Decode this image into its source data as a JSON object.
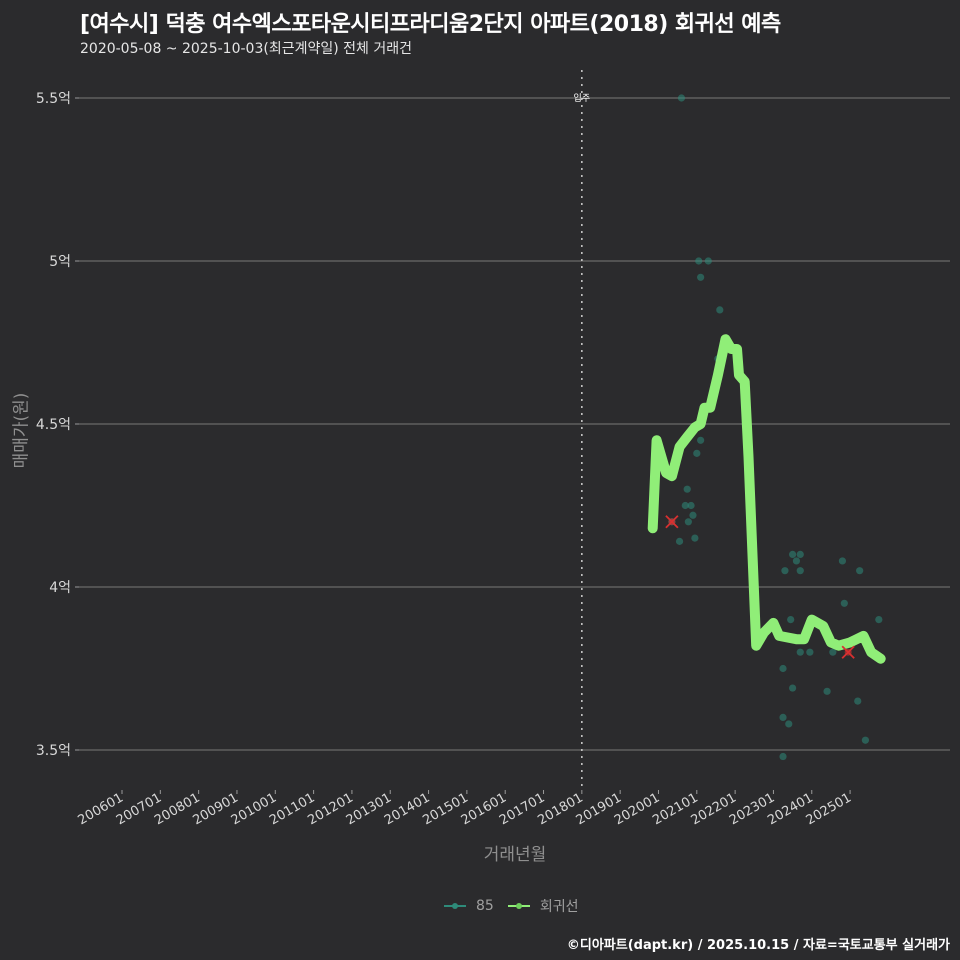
{
  "header": {
    "title": "[여수시] 덕충 여수엑스포타운시티프라디움2단지 아파트(2018) 회귀선 예측",
    "subtitle": "2020-05-08 ~ 2025-10-03(최근계약일) 전체 거래건"
  },
  "axes": {
    "ylabel": "매매가(원)",
    "xlabel": "거래년월",
    "y_ticks": [
      "5.5억",
      "5억",
      "4.5억",
      "4억",
      "3.5억"
    ],
    "x_ticks": [
      "200601",
      "200701",
      "200801",
      "200901",
      "201001",
      "201101",
      "201201",
      "201301",
      "201401",
      "201501",
      "201601",
      "201701",
      "201801",
      "201901",
      "202001",
      "202101",
      "202201",
      "202301",
      "202401",
      "202501"
    ],
    "vline_label": "입주"
  },
  "legend": [
    {
      "label": "85",
      "color": "#2e8b7a"
    },
    {
      "label": "회귀선",
      "color": "#90ee78"
    }
  ],
  "footer": "©디아파트(dapt.kr) / 2025.10.15 / 자료=국토교통부 실거래가",
  "colors": {
    "background": "#2b2b2d",
    "grid": "#6a6a6a",
    "scatter": "#2e8b7a",
    "regression": "#90ee78",
    "marker_x": "#d83030"
  },
  "chart_data": {
    "type": "scatter",
    "title": "[여수시] 덕충 여수엑스포타운시티프라디움2단지 아파트(2018) 회귀선 예측",
    "subtitle": "2020-05-08 ~ 2025-10-03(최근계약일) 전체 거래건",
    "xlabel": "거래년월",
    "ylabel": "매매가(원)",
    "ylim": [
      3.4,
      5.6
    ],
    "y_unit": "억",
    "xlim": [
      "2004-11",
      "2026-06"
    ],
    "grid": true,
    "legend_position": "bottom",
    "vertical_line": {
      "x": "2018-01",
      "label": "입주"
    },
    "series": [
      {
        "name": "85",
        "type": "scatter",
        "points": [
          {
            "x": "2020.35",
            "y": 4.2
          },
          {
            "x": "2020.55",
            "y": 4.14
          },
          {
            "x": "2020.60",
            "y": 5.5
          },
          {
            "x": "2020.70",
            "y": 4.25
          },
          {
            "x": "2020.75",
            "y": 4.3
          },
          {
            "x": "2020.78",
            "y": 4.2
          },
          {
            "x": "2020.85",
            "y": 4.25
          },
          {
            "x": "2020.90",
            "y": 4.22
          },
          {
            "x": "2020.95",
            "y": 4.15
          },
          {
            "x": "2021.00",
            "y": 4.41
          },
          {
            "x": "2021.05",
            "y": 5.0
          },
          {
            "x": "2021.10",
            "y": 4.95
          },
          {
            "x": "2021.10",
            "y": 4.45
          },
          {
            "x": "2021.30",
            "y": 5.0
          },
          {
            "x": "2021.55",
            "y": 4.7
          },
          {
            "x": "2021.60",
            "y": 4.85
          },
          {
            "x": "2023.25",
            "y": 3.48
          },
          {
            "x": "2023.25",
            "y": 3.6
          },
          {
            "x": "2023.25",
            "y": 3.75
          },
          {
            "x": "2023.30",
            "y": 4.05
          },
          {
            "x": "2023.40",
            "y": 3.58
          },
          {
            "x": "2023.45",
            "y": 3.9
          },
          {
            "x": "2023.50",
            "y": 3.69
          },
          {
            "x": "2023.50",
            "y": 4.1
          },
          {
            "x": "2023.60",
            "y": 4.08
          },
          {
            "x": "2023.70",
            "y": 4.1
          },
          {
            "x": "2023.70",
            "y": 4.05
          },
          {
            "x": "2023.70",
            "y": 3.8
          },
          {
            "x": "2023.95",
            "y": 3.8
          },
          {
            "x": "2024.40",
            "y": 3.68
          },
          {
            "x": "2024.55",
            "y": 3.8
          },
          {
            "x": "2024.80",
            "y": 4.08
          },
          {
            "x": "2024.85",
            "y": 3.95
          },
          {
            "x": "2025.20",
            "y": 3.65
          },
          {
            "x": "2025.25",
            "y": 4.05
          },
          {
            "x": "2025.40",
            "y": 3.53
          },
          {
            "x": "2025.75",
            "y": 3.9
          }
        ]
      },
      {
        "name": "회귀선",
        "type": "line",
        "points": [
          {
            "x": "2019.85",
            "y": 4.18
          },
          {
            "x": "2019.95",
            "y": 4.45
          },
          {
            "x": "2020.20",
            "y": 4.35
          },
          {
            "x": "2020.35",
            "y": 4.34
          },
          {
            "x": "2020.55",
            "y": 4.43
          },
          {
            "x": "2020.75",
            "y": 4.46
          },
          {
            "x": "2020.95",
            "y": 4.49
          },
          {
            "x": "2021.10",
            "y": 4.5
          },
          {
            "x": "2021.20",
            "y": 4.55
          },
          {
            "x": "2021.35",
            "y": 4.55
          },
          {
            "x": "2021.55",
            "y": 4.65
          },
          {
            "x": "2021.75",
            "y": 4.76
          },
          {
            "x": "2021.90",
            "y": 4.73
          },
          {
            "x": "2022.05",
            "y": 4.73
          },
          {
            "x": "2022.10",
            "y": 4.65
          },
          {
            "x": "2022.25",
            "y": 4.63
          },
          {
            "x": "2022.35",
            "y": 4.4
          },
          {
            "x": "2022.55",
            "y": 3.82
          },
          {
            "x": "2022.75",
            "y": 3.86
          },
          {
            "x": "2023.00",
            "y": 3.89
          },
          {
            "x": "2023.15",
            "y": 3.85
          },
          {
            "x": "2023.60",
            "y": 3.84
          },
          {
            "x": "2023.80",
            "y": 3.84
          },
          {
            "x": "2024.00",
            "y": 3.9
          },
          {
            "x": "2024.30",
            "y": 3.88
          },
          {
            "x": "2024.50",
            "y": 3.83
          },
          {
            "x": "2024.70",
            "y": 3.82
          },
          {
            "x": "2025.00",
            "y": 3.83
          },
          {
            "x": "2025.35",
            "y": 3.85
          },
          {
            "x": "2025.55",
            "y": 3.8
          },
          {
            "x": "2025.80",
            "y": 3.78
          }
        ]
      }
    ],
    "annotations": [
      {
        "type": "x-marker",
        "x": "2020.35",
        "y": 4.2,
        "color": "#d83030"
      },
      {
        "type": "x-marker",
        "x": "2024.95",
        "y": 3.8,
        "color": "#d83030"
      }
    ]
  }
}
